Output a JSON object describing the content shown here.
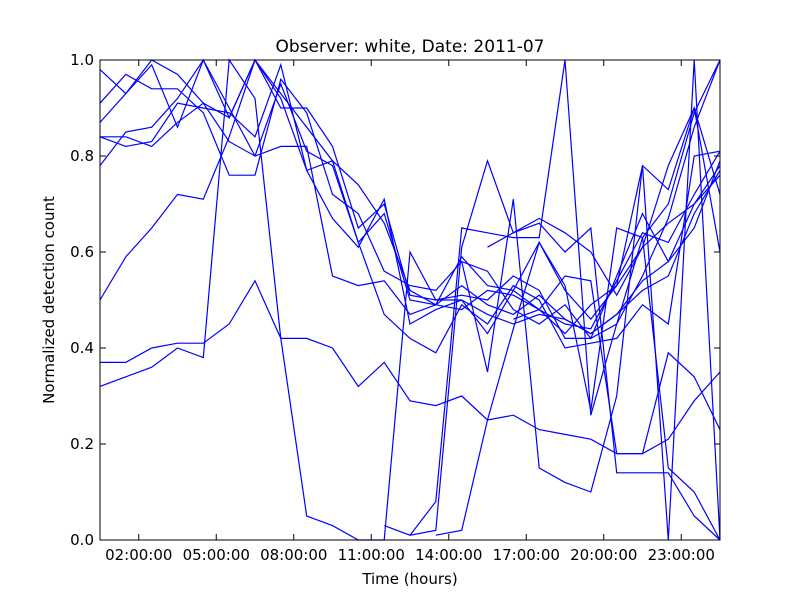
{
  "chart_data": {
    "type": "line",
    "title": "Observer: white, Date: 2011-07",
    "xlabel": "Time (hours)",
    "ylabel": "Normalized detection count",
    "x_unit": "hours",
    "xlim": [
      0.5,
      24.5
    ],
    "ylim": [
      0.0,
      1.0
    ],
    "x_ticks": [
      2,
      5,
      8,
      11,
      14,
      17,
      20,
      23
    ],
    "x_tick_labels": [
      "02:00:00",
      "05:00:00",
      "08:00:00",
      "11:00:00",
      "14:00:00",
      "17:00:00",
      "20:00:00",
      "23:00:00"
    ],
    "y_ticks": [
      0.0,
      0.2,
      0.4,
      0.6,
      0.8,
      1.0
    ],
    "y_tick_labels": [
      "0.0",
      "0.2",
      "0.4",
      "0.6",
      "0.8",
      "1.0"
    ],
    "grid": false,
    "legend": "none",
    "line_color": "#0000ff",
    "series": [
      {
        "x": [
          0.5,
          1.5,
          2.5,
          3.5,
          4.5,
          5.5,
          6.5,
          7.5,
          8.5,
          9.5,
          10.5,
          11.5,
          12.5,
          13.5,
          14.5,
          15.5,
          16.5,
          17.5,
          18.5,
          19.5,
          20.5,
          21.5,
          22.5,
          23.5,
          24.5
        ],
        "y": [
          0.98,
          0.93,
          1.0,
          0.97,
          0.91,
          0.88,
          1.0,
          0.93,
          0.86,
          0.79,
          0.74,
          0.66,
          0.52,
          0.49,
          0.53,
          0.49,
          0.47,
          0.51,
          0.46,
          0.43,
          0.47,
          0.52,
          0.55,
          0.68,
          0.77
        ]
      },
      {
        "x": [
          0.5,
          1.5,
          2.5,
          3.5,
          4.5,
          5.5,
          6.5,
          7.5,
          8.5,
          9.5,
          10.5,
          11.5,
          12.5,
          13.5,
          14.5,
          15.5,
          16.5,
          17.5,
          18.5,
          19.5,
          20.5,
          21.5,
          22.5,
          23.5,
          24.5
        ],
        "y": [
          0.84,
          0.84,
          0.82,
          0.87,
          0.91,
          0.83,
          0.8,
          0.95,
          0.81,
          0.78,
          0.62,
          0.68,
          0.5,
          0.49,
          0.48,
          0.52,
          0.51,
          0.48,
          0.45,
          0.44,
          0.54,
          0.64,
          0.62,
          0.72,
          0.81
        ]
      },
      {
        "x": [
          0.5,
          1.5,
          2.5,
          3.5,
          4.5,
          5.5,
          6.5,
          7.5,
          8.5,
          9.5,
          10.5,
          11.5,
          12.5,
          13.5,
          14.5,
          15.5,
          16.5,
          17.5,
          18.5,
          19.5,
          20.5,
          21.5,
          22.5,
          23.5,
          24.5
        ],
        "y": [
          0.91,
          0.97,
          0.94,
          0.94,
          0.89,
          0.76,
          0.76,
          0.96,
          0.89,
          0.72,
          0.68,
          0.56,
          0.53,
          0.52,
          0.58,
          0.56,
          0.48,
          0.45,
          0.49,
          0.42,
          0.55,
          0.68,
          0.58,
          0.65,
          0.79
        ]
      },
      {
        "x": [
          0.5,
          1.5,
          2.5,
          3.5,
          4.5,
          5.5,
          6.5,
          7.5,
          8.5,
          9.5,
          10.5,
          11.5,
          12.5,
          13.5,
          14.5,
          15.5,
          16.5,
          17.5,
          18.5,
          19.5,
          20.5,
          21.5,
          22.5,
          23.5,
          24.5
        ],
        "y": [
          0.87,
          0.93,
          0.99,
          0.86,
          1.0,
          0.88,
          1.0,
          0.9,
          0.9,
          0.82,
          0.65,
          0.7,
          0.51,
          0.5,
          0.51,
          0.5,
          0.55,
          0.52,
          0.42,
          0.42,
          0.45,
          0.55,
          0.67,
          0.86,
          1.0
        ]
      },
      {
        "x": [
          0.5,
          1.5,
          2.5,
          3.5,
          4.5,
          5.5,
          6.5,
          7.5,
          8.5,
          9.5,
          10.5,
          11.5,
          12.5,
          13.5,
          14.5,
          15.5,
          16.5,
          17.5,
          18.5,
          19.5,
          20.5,
          21.5,
          22.5,
          23.5,
          24.5
        ],
        "y": [
          0.78,
          0.85,
          0.86,
          0.92,
          1.0,
          0.9,
          0.8,
          0.82,
          0.82,
          0.55,
          0.53,
          0.54,
          0.47,
          0.49,
          0.59,
          0.53,
          0.52,
          0.48,
          0.43,
          0.49,
          0.53,
          0.61,
          0.78,
          0.9,
          0.6
        ]
      },
      {
        "x": [
          0.5,
          1.5,
          2.5,
          3.5,
          4.5,
          5.5,
          6.5,
          7.5,
          8.5,
          9.5,
          10.5,
          11.5,
          12.5,
          13.5,
          14.5,
          15.5,
          16.5,
          17.5,
          18.5,
          19.5,
          20.5,
          21.5,
          22.5,
          23.5,
          24.5
        ],
        "y": [
          0.84,
          0.82,
          0.83,
          0.91,
          0.9,
          0.89,
          0.84,
          0.99,
          0.77,
          0.67,
          0.61,
          0.71,
          0.45,
          0.48,
          0.5,
          0.47,
          0.45,
          0.47,
          0.46,
          0.43,
          0.47,
          0.54,
          0.58,
          0.7,
          0.78
        ]
      },
      {
        "x": [
          0.5,
          1.5,
          2.5,
          3.5,
          4.5,
          5.5,
          6.5,
          7.5,
          8.5,
          9.5,
          10.5,
          11.5,
          12.5,
          13.5,
          14.5,
          15.5,
          16.5,
          17.5,
          18.5,
          19.5,
          20.5,
          21.5,
          22.5,
          23.5,
          24.5
        ],
        "y": [
          0.5,
          0.59,
          0.65,
          0.72,
          0.71,
          0.84,
          1.0,
          0.92,
          0.77,
          0.79,
          0.62,
          0.47,
          0.42,
          0.39,
          0.49,
          0.45,
          0.53,
          0.5,
          0.4,
          0.41,
          0.42,
          0.49,
          0.45,
          0.8,
          0.81
        ]
      },
      {
        "x": [
          0.5,
          1.5,
          2.5,
          3.5,
          4.5,
          5.5,
          6.5,
          7.5,
          8.5,
          9.5,
          10.5,
          11.5,
          12.5,
          13.5,
          14.5,
          15.5,
          16.5,
          17.5,
          18.5,
          19.5,
          20.5,
          21.5,
          22.5,
          23.5,
          24.5
        ],
        "y": [
          0.37,
          0.37,
          0.4,
          0.41,
          0.41,
          0.45,
          0.54,
          0.42,
          0.42,
          0.4,
          0.32,
          0.37,
          0.29,
          0.28,
          0.3,
          0.25,
          0.26,
          0.23,
          0.22,
          0.21,
          0.18,
          0.18,
          0.21,
          0.29,
          0.35
        ]
      },
      {
        "x": [
          0.5,
          1.5,
          2.5,
          3.5,
          4.5,
          5.5,
          6.5,
          7.5,
          8.5,
          9.5,
          10.5,
          11.5,
          12.5,
          13.5,
          14.5,
          15.5,
          16.5,
          17.5,
          18.5,
          19.5,
          20.5,
          21.5,
          22.5,
          23.5,
          24.5
        ],
        "y": [
          0.32,
          0.34,
          0.36,
          0.4,
          0.38,
          1.0,
          0.92,
          0.42,
          0.05,
          0.03,
          0.0,
          0.0,
          0.6,
          0.5,
          0.5,
          0.43,
          0.52,
          0.62,
          0.52,
          0.46,
          0.53,
          0.78,
          0.73,
          0.9,
          0.72
        ]
      },
      {
        "x": [
          11.5,
          12.5,
          13.5,
          14.5,
          15.5,
          16.5,
          17.5,
          18.5,
          19.5,
          20.5,
          21.5,
          22.5,
          23.5,
          24.5
        ],
        "y": [
          0.03,
          0.01,
          0.02,
          0.61,
          0.79,
          0.64,
          0.67,
          0.64,
          0.6,
          0.51,
          0.61,
          0.66,
          0.7,
          0.76
        ]
      },
      {
        "x": [
          12.5,
          13.5,
          14.5,
          15.5,
          16.5,
          17.5,
          18.5,
          19.5,
          20.5,
          21.5,
          22.5,
          23.5,
          24.5
        ],
        "y": [
          0.01,
          0.08,
          0.65,
          0.64,
          0.63,
          0.63,
          1.0,
          0.26,
          0.45,
          0.63,
          0.7,
          0.89,
          1.0
        ]
      },
      {
        "x": [
          13.5,
          14.5,
          15.5,
          16.5,
          17.5,
          18.5,
          19.5,
          20.5,
          21.5,
          22.5,
          23.5,
          24.5
        ],
        "y": [
          0.01,
          0.02,
          0.25,
          0.44,
          0.62,
          0.53,
          0.27,
          0.65,
          0.63,
          0.15,
          0.1,
          0.0
        ]
      },
      {
        "x": [
          14.5,
          15.5,
          16.5,
          17.5,
          18.5,
          19.5,
          20.5,
          21.5,
          22.5,
          23.5,
          24.5
        ],
        "y": [
          0.58,
          0.35,
          0.71,
          0.15,
          0.12,
          0.1,
          0.3,
          0.78,
          0.0,
          1.0,
          0.0
        ]
      },
      {
        "x": [
          15.5,
          16.5,
          17.5,
          18.5,
          19.5,
          20.5,
          21.5,
          22.5,
          23.5,
          24.5
        ],
        "y": [
          0.61,
          0.64,
          0.66,
          0.6,
          0.65,
          0.14,
          0.14,
          0.14,
          0.05,
          0.0
        ]
      },
      {
        "x": [
          16.5,
          17.5,
          18.5,
          19.5,
          20.5,
          21.5,
          22.5,
          23.5,
          24.5
        ],
        "y": [
          0.46,
          0.48,
          0.55,
          0.54,
          0.18,
          0.18,
          0.39,
          0.34,
          0.23
        ]
      }
    ]
  }
}
